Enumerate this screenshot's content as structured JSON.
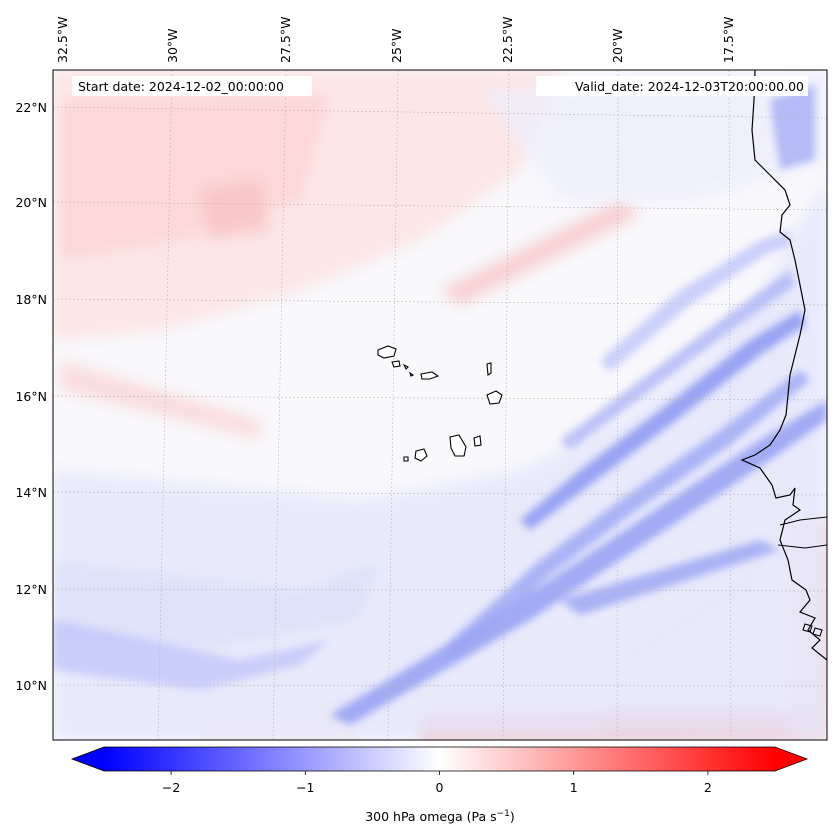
{
  "map": {
    "start_label": "Start date: 2024-12-02_00:00:00",
    "valid_label": "Valid_date: 2024-12-03T20:00:00.00",
    "lon_labels": [
      "32.5°W",
      "30°W",
      "27.5°W",
      "25°W",
      "22.5°W",
      "20°W",
      "17.5°W"
    ],
    "lat_labels": [
      "22°N",
      "20°N",
      "18°N",
      "16°N",
      "14°N",
      "12°N",
      "10°N"
    ],
    "colors": {
      "negative": "#0000ff",
      "zero": "#ffffff",
      "positive": "#ff0000",
      "coast": "#000000",
      "grid": "#b0b0b0"
    }
  },
  "colorbar": {
    "ticks": [
      "−2",
      "−1",
      "0",
      "1",
      "2"
    ],
    "tick_values": [
      -2,
      -1,
      0,
      1,
      2
    ],
    "range": [
      -2.5,
      2.5
    ],
    "label": "300 hPa omega (Pa s",
    "label_sup": "−1",
    "label_end": ")"
  }
}
